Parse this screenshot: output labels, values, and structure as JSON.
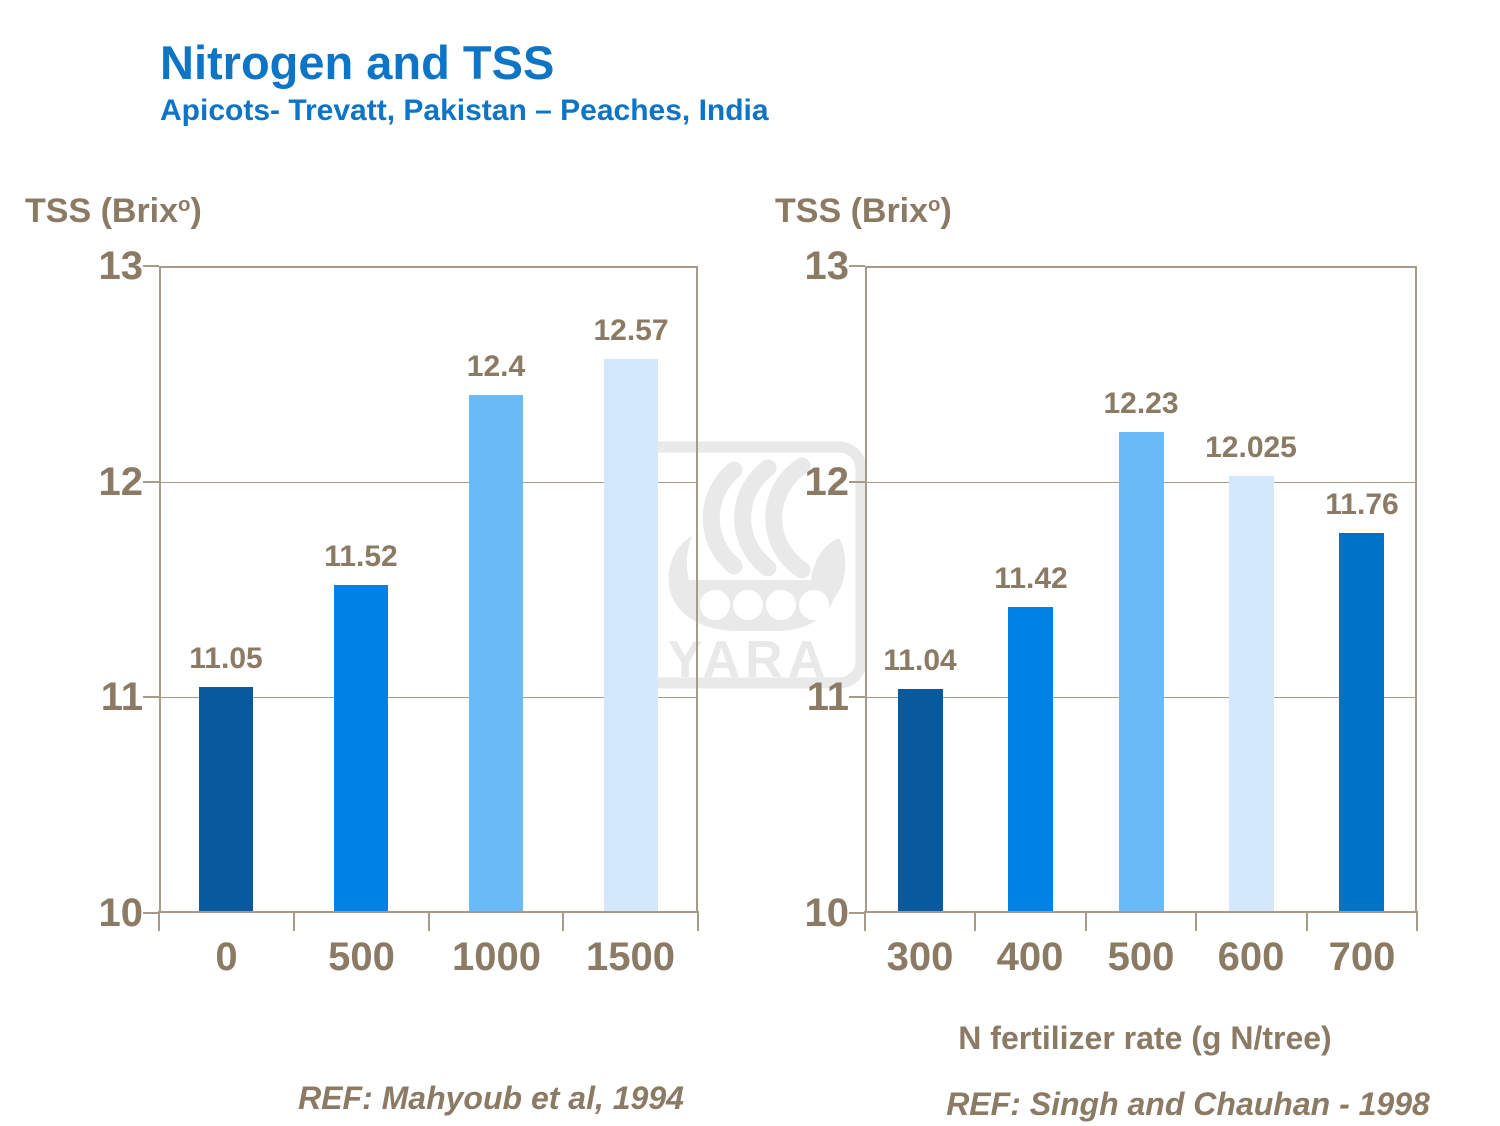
{
  "header": {
    "title": "Nitrogen and TSS",
    "subtitle": "Apicots- Trevatt, Pakistan – Peaches, India"
  },
  "colors": {
    "title_blue": "#0D74C6",
    "text_brown": "#8B7A64",
    "frame_tan": "#A69A8B",
    "watermark_gray": "#E9E9EA",
    "bar_dark_blue": "#08599E",
    "bar_bright_blue": "#0081E6",
    "bar_light_blue": "#6ABAF7",
    "bar_pale_blue": "#D3E9FB",
    "bar_medium_blue": "#0072C8"
  },
  "watermark": {
    "text": "YARA"
  },
  "chart_data": [
    {
      "type": "bar",
      "title": "",
      "ylabel_pre": "TSS (Brix",
      "ylabel_sup": "o",
      "ylabel_post": ")",
      "xlabel": "",
      "categories": [
        "0",
        "500",
        "1000",
        "1500"
      ],
      "values": [
        11.05,
        11.52,
        12.4,
        12.57
      ],
      "value_labels": [
        "11.05",
        "11.52",
        "12.4",
        "12.57"
      ],
      "bar_colors": [
        "#08599E",
        "#0081E6",
        "#6ABAF7",
        "#D3E9FB"
      ],
      "ylim": [
        10,
        13
      ],
      "y_ticks": [
        13,
        12,
        11,
        10
      ],
      "gridlines": [
        12,
        11
      ],
      "grid": true,
      "legend": "none",
      "ref": "REF: Mahyoub et al, 1994"
    },
    {
      "type": "bar",
      "title": "",
      "ylabel_pre": "TSS (Brix",
      "ylabel_sup": "o",
      "ylabel_post": ")",
      "xlabel": "N fertilizer rate (g N/tree)",
      "categories": [
        "300",
        "400",
        "500",
        "600",
        "700"
      ],
      "values": [
        11.04,
        11.42,
        12.23,
        12.025,
        11.76
      ],
      "value_labels": [
        "11.04",
        "11.42",
        "12.23",
        "12.025",
        "11.76"
      ],
      "bar_colors": [
        "#08599E",
        "#0081E6",
        "#6ABAF7",
        "#D3E9FB",
        "#0072C8"
      ],
      "ylim": [
        10,
        13
      ],
      "y_ticks": [
        13,
        12,
        11,
        10
      ],
      "gridlines": [
        12,
        11
      ],
      "grid": true,
      "legend": "none",
      "ref": "REF: Singh and Chauhan - 1998"
    }
  ]
}
